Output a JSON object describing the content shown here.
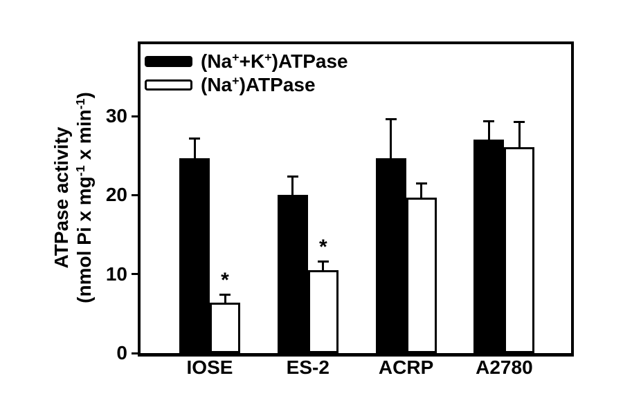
{
  "chart_data": {
    "type": "bar",
    "title": "",
    "categories": [
      "IOSE",
      "ES-2",
      "ACRP",
      "A2780"
    ],
    "series": [
      {
        "name": "(Na⁺+K⁺)ATPase",
        "label_segments": [
          {
            "t": "(Na"
          },
          {
            "t": "+",
            "sup": true
          },
          {
            "t": "+K"
          },
          {
            "t": "+",
            "sup": true
          },
          {
            "t": ")ATPase"
          }
        ],
        "style": "filled",
        "fill": "#000000",
        "values": [
          24.7,
          20.0,
          24.7,
          27.0
        ],
        "errors": [
          2.6,
          2.5,
          5.0,
          2.5
        ],
        "significance": [
          "",
          "",
          "",
          ""
        ]
      },
      {
        "name": "(Na⁺)ATPase",
        "label_segments": [
          {
            "t": "(Na"
          },
          {
            "t": "+",
            "sup": true
          },
          {
            "t": ")ATPase"
          }
        ],
        "style": "open",
        "fill": "#ffffff",
        "values": [
          6.4,
          10.5,
          19.7,
          26.1
        ],
        "errors": [
          1.1,
          1.2,
          1.9,
          3.3
        ],
        "significance": [
          "*",
          "*",
          "",
          ""
        ]
      }
    ],
    "ylabel_line1": "ATPase activity",
    "ylabel_line2_segments": [
      {
        "t": "(nmol Pi x mg"
      },
      {
        "t": "-1",
        "sup": true
      },
      {
        "t": " x min"
      },
      {
        "t": "-1",
        "sup": true
      },
      {
        "t": ")"
      }
    ],
    "xlabel": "",
    "yticks": [
      "0",
      "10",
      "20",
      "30"
    ],
    "ytick_values": [
      0,
      10,
      20,
      30
    ],
    "ylim": [
      0,
      39.1
    ],
    "grid": false,
    "legend_position": "top-left-inside",
    "error_bars": "upper-cap",
    "significance_marker": "*",
    "colors": {
      "bar_filled": "#000000",
      "bar_open_fill": "#ffffff",
      "frame": "#000000",
      "text": "#000000",
      "background": "#ffffff"
    }
  }
}
